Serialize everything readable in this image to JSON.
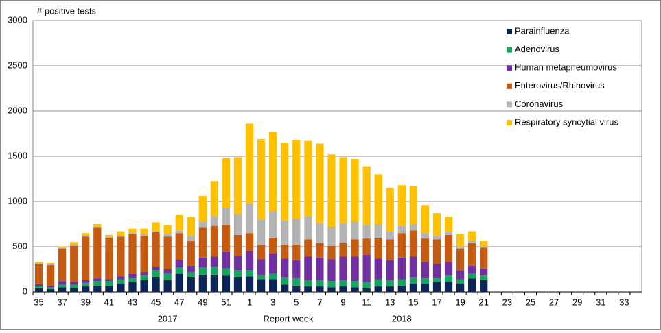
{
  "chart_data": {
    "type": "stacked_bar",
    "y_label": "# positive tests",
    "x_label": "Report week",
    "x_groups": [
      "2017",
      "2018"
    ],
    "categories": [
      "35",
      null,
      "37",
      null,
      "39",
      null,
      "41",
      null,
      "43",
      null,
      "45",
      null,
      "47",
      null,
      "49",
      null,
      "51",
      null,
      "1",
      null,
      "3",
      null,
      "5",
      null,
      "7",
      null,
      "9",
      null,
      "11",
      null,
      "13",
      null,
      "15",
      null,
      "17",
      null,
      "19",
      null,
      "21",
      null,
      "23",
      null,
      "25",
      null,
      "27",
      null,
      "29",
      null,
      "31",
      null,
      "33",
      null
    ],
    "ylim": [
      0,
      3000
    ],
    "yticks": [
      0,
      500,
      1000,
      1500,
      2000,
      2500,
      3000
    ],
    "grid": true,
    "legend": "top-right",
    "series": [
      {
        "name": "Parainfluenza",
        "color": "#0c2456",
        "values": [
          40,
          30,
          50,
          40,
          60,
          70,
          70,
          90,
          110,
          130,
          160,
          130,
          200,
          160,
          190,
          190,
          180,
          160,
          170,
          140,
          140,
          80,
          70,
          60,
          60,
          50,
          60,
          50,
          40,
          60,
          60,
          70,
          90,
          90,
          110,
          110,
          90,
          150,
          130,
          null,
          null,
          null,
          null,
          null,
          null,
          null,
          null,
          null,
          null,
          null,
          null,
          null
        ]
      },
      {
        "name": "Adenovirus",
        "color": "#15a35d",
        "values": [
          25,
          20,
          30,
          40,
          40,
          50,
          50,
          50,
          40,
          50,
          80,
          70,
          70,
          60,
          80,
          90,
          80,
          80,
          70,
          50,
          60,
          80,
          80,
          70,
          70,
          70,
          70,
          70,
          70,
          80,
          70,
          70,
          70,
          60,
          40,
          70,
          50,
          50,
          50,
          null,
          null,
          null,
          null,
          null,
          null,
          null,
          null,
          null,
          null,
          null,
          null,
          null
        ]
      },
      {
        "name": "Human metapneumovirus",
        "color": "#7030a0",
        "values": [
          20,
          15,
          40,
          30,
          30,
          30,
          20,
          30,
          50,
          40,
          40,
          50,
          80,
          70,
          110,
          110,
          180,
          160,
          210,
          170,
          230,
          210,
          200,
          260,
          250,
          240,
          260,
          270,
          300,
          230,
          220,
          240,
          230,
          180,
          160,
          150,
          100,
          90,
          80,
          null,
          null,
          null,
          null,
          null,
          null,
          null,
          null,
          null,
          null,
          null,
          null,
          null
        ]
      },
      {
        "name": "Enterovirus/Rhinovirus",
        "color": "#c55a11",
        "values": [
          220,
          230,
          360,
          400,
          480,
          560,
          460,
          440,
          440,
          400,
          380,
          360,
          300,
          270,
          330,
          340,
          300,
          230,
          200,
          160,
          170,
          150,
          170,
          190,
          160,
          150,
          150,
          190,
          180,
          230,
          230,
          270,
          290,
          260,
          270,
          300,
          240,
          250,
          230,
          null,
          null,
          null,
          null,
          null,
          null,
          null,
          null,
          null,
          null,
          null,
          null,
          null
        ]
      },
      {
        "name": "Coronavirus",
        "color": "#b4b4b4",
        "values": [
          10,
          10,
          10,
          10,
          15,
          10,
          10,
          10,
          10,
          20,
          10,
          30,
          30,
          60,
          70,
          110,
          190,
          230,
          330,
          280,
          290,
          270,
          290,
          260,
          220,
          210,
          220,
          200,
          150,
          150,
          90,
          80,
          70,
          60,
          40,
          40,
          20,
          20,
          10,
          null,
          null,
          null,
          null,
          null,
          null,
          null,
          null,
          null,
          null,
          null,
          null,
          null
        ]
      },
      {
        "name": "Respiratory syncytial virus",
        "color": "#ffc000",
        "values": [
          15,
          15,
          15,
          30,
          25,
          30,
          20,
          50,
          50,
          60,
          100,
          100,
          170,
          210,
          280,
          385,
          550,
          630,
          880,
          890,
          880,
          860,
          870,
          830,
          880,
          800,
          730,
          690,
          650,
          550,
          480,
          450,
          420,
          310,
          250,
          160,
          140,
          110,
          60,
          null,
          null,
          null,
          null,
          null,
          null,
          null,
          null,
          null,
          null,
          null,
          null,
          null
        ]
      }
    ]
  }
}
